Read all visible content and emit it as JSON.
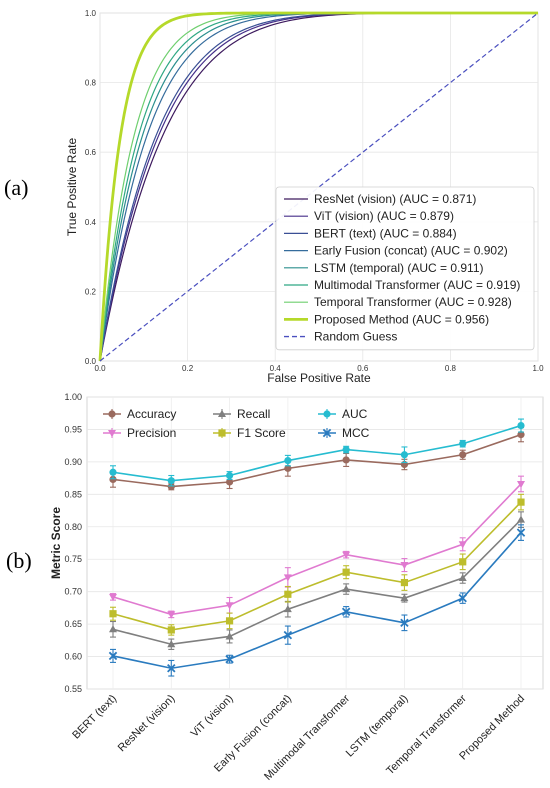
{
  "panels": [
    {
      "label": "(a)"
    },
    {
      "label": "(b)"
    }
  ],
  "chart_data": [
    {
      "type": "line",
      "xlabel": "False Positive Rate",
      "ylabel": "True Positive Rate",
      "xlim": [
        0,
        1
      ],
      "ylim": [
        0,
        1
      ],
      "xticks": [
        "0.0",
        "0.2",
        "0.4",
        "0.6",
        "0.8",
        "1.0"
      ],
      "yticks": [
        "0.0",
        "0.2",
        "0.4",
        "0.6",
        "0.8",
        "1.0"
      ],
      "grid": true,
      "legend_position": "bottom-right",
      "series": [
        {
          "name": "ResNet (vision) (AUC = 0.871)",
          "auc": 0.871,
          "color": "#3d1a5e",
          "width": 1.2
        },
        {
          "name": "ViT (vision) (AUC = 0.879)",
          "auc": 0.879,
          "color": "#462f8a",
          "width": 1.2
        },
        {
          "name": "BERT (text) (AUC = 0.884)",
          "auc": 0.884,
          "color": "#3a4f95",
          "width": 1.2
        },
        {
          "name": "Early Fusion (concat) (AUC = 0.902)",
          "auc": 0.902,
          "color": "#356c9c",
          "width": 1.2
        },
        {
          "name": "LSTM (temporal) (AUC = 0.911)",
          "auc": 0.911,
          "color": "#2b8f8e",
          "width": 1.2
        },
        {
          "name": "Multimodal Transformer (AUC = 0.919)",
          "auc": 0.919,
          "color": "#2fa884",
          "width": 1.2
        },
        {
          "name": "Temporal Transformer (AUC = 0.928)",
          "auc": 0.928,
          "color": "#6fcf6f",
          "width": 1.2
        },
        {
          "name": "Proposed Method (AUC = 0.956)",
          "auc": 0.956,
          "color": "#b5d92a",
          "width": 2.8
        },
        {
          "name": "Random Guess",
          "color": "#4a4fbf",
          "dashed": true,
          "x": [
            0,
            1
          ],
          "y": [
            0,
            1
          ]
        }
      ]
    },
    {
      "type": "line",
      "xlabel": "",
      "ylabel": "Metric Score",
      "ylim": [
        0.55,
        1.0
      ],
      "yticks": [
        "0.55",
        "0.60",
        "0.65",
        "0.70",
        "0.75",
        "0.80",
        "0.85",
        "0.90",
        "0.95",
        "1.00"
      ],
      "grid": true,
      "legend_position": "top-left",
      "categories": [
        "BERT (text)",
        "ResNet (vision)",
        "ViT (vision)",
        "Early Fusion (concat)",
        "Multimodal Transformer",
        "LSTM (temporal)",
        "Temporal Transformer",
        "Proposed Method"
      ],
      "series": [
        {
          "name": "Accuracy",
          "marker": "circle",
          "color": "#9a6a5e",
          "values": [
            0.873,
            0.862,
            0.869,
            0.89,
            0.903,
            0.896,
            0.911,
            0.942
          ],
          "errors": [
            0.012,
            0.005,
            0.01,
            0.012,
            0.01,
            0.008,
            0.007,
            0.011
          ]
        },
        {
          "name": "Precision",
          "marker": "triangle-down",
          "color": "#e07ad0",
          "values": [
            0.692,
            0.665,
            0.679,
            0.722,
            0.757,
            0.741,
            0.773,
            0.866
          ],
          "errors": [
            0.005,
            0.005,
            0.012,
            0.015,
            0.005,
            0.01,
            0.01,
            0.012
          ]
        },
        {
          "name": "Recall",
          "marker": "triangle-up",
          "color": "#7f7f7f",
          "values": [
            0.642,
            0.619,
            0.631,
            0.673,
            0.704,
            0.69,
            0.721,
            0.811
          ],
          "errors": [
            0.012,
            0.008,
            0.01,
            0.012,
            0.008,
            0.006,
            0.008,
            0.012
          ]
        },
        {
          "name": "F1 Score",
          "marker": "square",
          "color": "#bdbd2c",
          "values": [
            0.666,
            0.641,
            0.655,
            0.696,
            0.73,
            0.714,
            0.746,
            0.838
          ],
          "errors": [
            0.01,
            0.008,
            0.012,
            0.012,
            0.01,
            0.012,
            0.012,
            0.012
          ]
        },
        {
          "name": "AUC",
          "marker": "circle",
          "color": "#26bcd0",
          "values": [
            0.884,
            0.871,
            0.879,
            0.902,
            0.919,
            0.911,
            0.928,
            0.956
          ],
          "errors": [
            0.01,
            0.008,
            0.006,
            0.008,
            0.005,
            0.012,
            0.005,
            0.01
          ]
        },
        {
          "name": "MCC",
          "marker": "x",
          "color": "#2a7bbf",
          "values": [
            0.601,
            0.582,
            0.596,
            0.633,
            0.669,
            0.652,
            0.69,
            0.791
          ],
          "errors": [
            0.01,
            0.012,
            0.006,
            0.014,
            0.008,
            0.012,
            0.008,
            0.012
          ]
        }
      ]
    }
  ]
}
